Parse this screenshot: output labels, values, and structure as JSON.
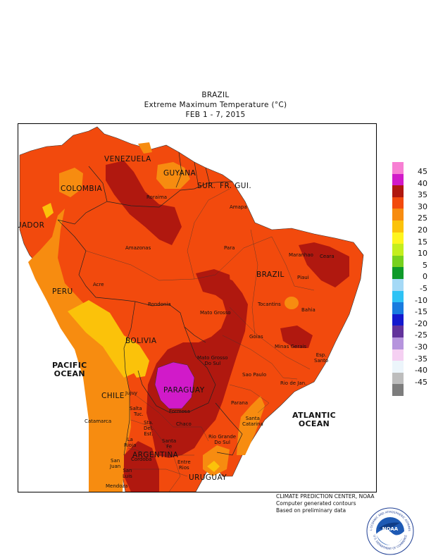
{
  "header": {
    "line1": "BRAZIL",
    "line2": "Extreme Maximum Temperature (°C)",
    "line3": "FEB 1 - 7, 2015"
  },
  "legend": {
    "values": [
      "45",
      "40",
      "35",
      "30",
      "25",
      "20",
      "15",
      "10",
      "5",
      "0",
      "-5",
      "-10",
      "-15",
      "-20",
      "-25",
      "-30",
      "-35",
      "-40",
      "-45"
    ],
    "colors": [
      "#f77fd3",
      "#d11ac9",
      "#b0180f",
      "#f24a0d",
      "#f78c10",
      "#fbc20a",
      "#fef51e",
      "#c4ee1e",
      "#77d11e",
      "#0e9a2a",
      "#a5d9f6",
      "#2ec2f5",
      "#197bdf",
      "#1419ce",
      "#62329b",
      "#b694dd",
      "#f5d0f2",
      "#ecf5fb",
      "#bdbdbd",
      "#7d7d7d"
    ]
  },
  "ocean_labels": [
    {
      "text": "PACIFIC\nOCEAN"
    },
    {
      "text": "ATLANTIC\nOCEAN"
    }
  ],
  "countries": {
    "venezuela": "VENEZUELA",
    "guyana": "GUYANA",
    "sur": "SUR.",
    "frgui": "FR. GUI.",
    "colombia": "COLOMBIA",
    "ecuador": "ECUADOR",
    "peru": "PERU",
    "brazil": "BRAZIL",
    "bolivia": "BOLIVIA",
    "paraguay": "PARAGUAY",
    "chile": "CHILE",
    "argentina": "ARGENTINA",
    "uruguay": "URUGUAY"
  },
  "regions": {
    "roraima": "Roraima",
    "amapa": "Amapa",
    "amazonas": "Amazonas",
    "para": "Para",
    "maranhao": "Maranhao",
    "ceara": "Ceara",
    "piaui": "Piaui",
    "acre": "Acre",
    "rondonia": "Rondonia",
    "matogrosso": "Mato Grosso",
    "tocantins": "Tocantins",
    "bahia": "Bahia",
    "goias": "Goias",
    "minasgerais": "Minas Gerais",
    "espsanto": "Esp.\nSanto",
    "mgdosul": "Mato Grosso\nDo Sul",
    "saopaulo": "Sao Paulo",
    "riodejan": "Rio de Jan.",
    "parana": "Parana",
    "santacatarina": "Santa\nCatarina",
    "riograndedosul": "Rio Grande\nDo Sul",
    "jujuy": "Jujuy",
    "salta": "Salta",
    "formosa": "Formosa",
    "catamarca": "Catamarca",
    "chaco": "Chaco",
    "sdelest": "Sta.\nDel.\nEst.",
    "santafe": "Santa\nFe",
    "larioja": "La\nRioja",
    "cordoba": "Cordoba",
    "sanjuan": "San\nJuan",
    "sanluis": "San\nLuis",
    "entrerios": "Entre\nRios",
    "mendoza": "Mendoza",
    "tucuman": "Tuc."
  },
  "footer": {
    "line1": "CLIMATE PREDICTION CENTER, NOAA",
    "line2": "Computer generated contours",
    "line3": "Based on preliminary data"
  },
  "logo": {
    "center_text": "NOAA",
    "ring_top": "NATIONAL OCEANIC AND ATMOSPHERIC ADMINISTRATION",
    "ring_bottom": "U.S. DEPARTMENT OF COMMERCE"
  }
}
